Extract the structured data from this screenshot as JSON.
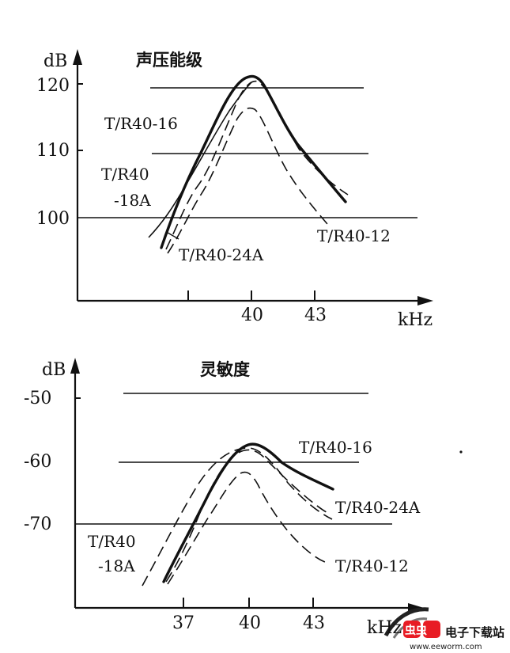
{
  "chart_data": [
    {
      "type": "line",
      "title": "声压能级",
      "ylabel": "dB",
      "xlabel": "kHz",
      "ylim": [
        92,
        122
      ],
      "y_ticks": [
        100,
        110,
        120
      ],
      "x_ticks": [
        40,
        43
      ],
      "grid_lines": [
        100,
        110,
        120
      ],
      "series": [
        {
          "name": "T/R40-16",
          "style": "solid-thick",
          "points": [
            [
              36.3,
              96
            ],
            [
              37.5,
              106
            ],
            [
              38.5,
              114
            ],
            [
              39.3,
              119.2
            ],
            [
              40,
              121
            ],
            [
              40.6,
              120.3
            ],
            [
              41.3,
              116.5
            ],
            [
              42,
              112.5
            ],
            [
              43,
              108
            ],
            [
              44,
              105
            ],
            [
              44.7,
              102.5
            ]
          ]
        },
        {
          "name": "T/R40-18A",
          "style": "solid-thin",
          "points": [
            [
              35.9,
              97.5
            ],
            [
              36.6,
              100
            ],
            [
              37.4,
              103.5
            ],
            [
              38.3,
              108.5
            ],
            [
              39.1,
              114.5
            ],
            [
              40,
              119.5
            ]
          ]
        },
        {
          "name": "T/R40-24A",
          "style": "dashed",
          "points": [
            [
              36.4,
              96
            ],
            [
              37.4,
              103
            ],
            [
              38.4,
              108.5
            ],
            [
              39.4,
              117
            ],
            [
              40.3,
              120.5
            ],
            [
              41,
              118
            ],
            [
              42,
              112.5
            ],
            [
              43,
              109
            ],
            [
              44,
              105.5
            ],
            [
              44.5,
              104
            ]
          ]
        },
        {
          "name": "T/R40-12",
          "style": "dashed",
          "points": [
            [
              36.5,
              96
            ],
            [
              37.6,
              102
            ],
            [
              38.4,
              106
            ],
            [
              39.3,
              111.5
            ],
            [
              40,
              115.8
            ],
            [
              40.6,
              114.5
            ],
            [
              41.4,
              110
            ],
            [
              42.4,
              105
            ],
            [
              43.4,
              101
            ],
            [
              44.3,
              99.5
            ]
          ]
        }
      ],
      "labels": [
        "T/R40-16",
        "T/R40",
        "-18A",
        "T/R40-24A",
        "T/R40-12"
      ]
    },
    {
      "type": "line",
      "title": "灵敏度",
      "ylabel": "dB",
      "xlabel": "kHz",
      "ylim": [
        -79,
        -46
      ],
      "y_ticks": [
        -50,
        -60,
        -70
      ],
      "x_ticks": [
        37,
        40,
        43
      ],
      "grid_lines": [
        -50,
        -60,
        -70
      ],
      "series": [
        {
          "name": "T/R40-16",
          "style": "solid-thick",
          "points": [
            [
              35.7,
              -78
            ],
            [
              36.5,
              -74.5
            ],
            [
              37.5,
              -69
            ],
            [
              38.5,
              -63.5
            ],
            [
              39.3,
              -59
            ],
            [
              40,
              -57.5
            ],
            [
              40.6,
              -58
            ],
            [
              41.5,
              -60.5
            ],
            [
              42.5,
              -62.5
            ],
            [
              43.5,
              -64.3
            ],
            [
              44.3,
              -65.5
            ]
          ]
        },
        {
          "name": "T/R40-18A",
          "style": "dashed",
          "points": [
            [
              34.7,
              -78
            ],
            [
              35.7,
              -72.5
            ],
            [
              36.7,
              -67
            ],
            [
              37.7,
              -62
            ],
            [
              38.7,
              -59
            ],
            [
              40,
              -58
            ],
            [
              40.8,
              -59.5
            ],
            [
              41.5,
              -61.5
            ],
            [
              42.5,
              -64
            ],
            [
              43.6,
              -66.5
            ],
            [
              44.2,
              -67
            ]
          ]
        },
        {
          "name": "T/R40-24A",
          "style": "dashed",
          "points": [
            [
              35.9,
              -78
            ],
            [
              36.9,
              -72.5
            ],
            [
              37.9,
              -67.5
            ],
            [
              38.6,
              -63.5
            ],
            [
              39.4,
              -60
            ],
            [
              40.2,
              -58.3
            ],
            [
              41,
              -59.5
            ],
            [
              42,
              -62
            ],
            [
              43,
              -64.5
            ],
            [
              44,
              -67
            ]
          ]
        },
        {
          "name": "T/R40-12",
          "style": "dashed",
          "points": [
            [
              36,
              -78
            ],
            [
              36.9,
              -74.5
            ],
            [
              37.8,
              -71
            ],
            [
              38.8,
              -66.5
            ],
            [
              39.6,
              -62.5
            ],
            [
              40.1,
              -61.7
            ],
            [
              40.6,
              -63
            ],
            [
              41.4,
              -66.5
            ],
            [
              42.3,
              -70.5
            ],
            [
              43.2,
              -73
            ],
            [
              44,
              -75
            ]
          ]
        }
      ],
      "labels": [
        "T/R40-16",
        "T/R40-24A",
        "T/R40",
        "-18A",
        "T/R40-12"
      ]
    }
  ],
  "watermark": {
    "logo": "虫虫",
    "name": "电子下载站",
    "url": "www.eeworm.com"
  }
}
